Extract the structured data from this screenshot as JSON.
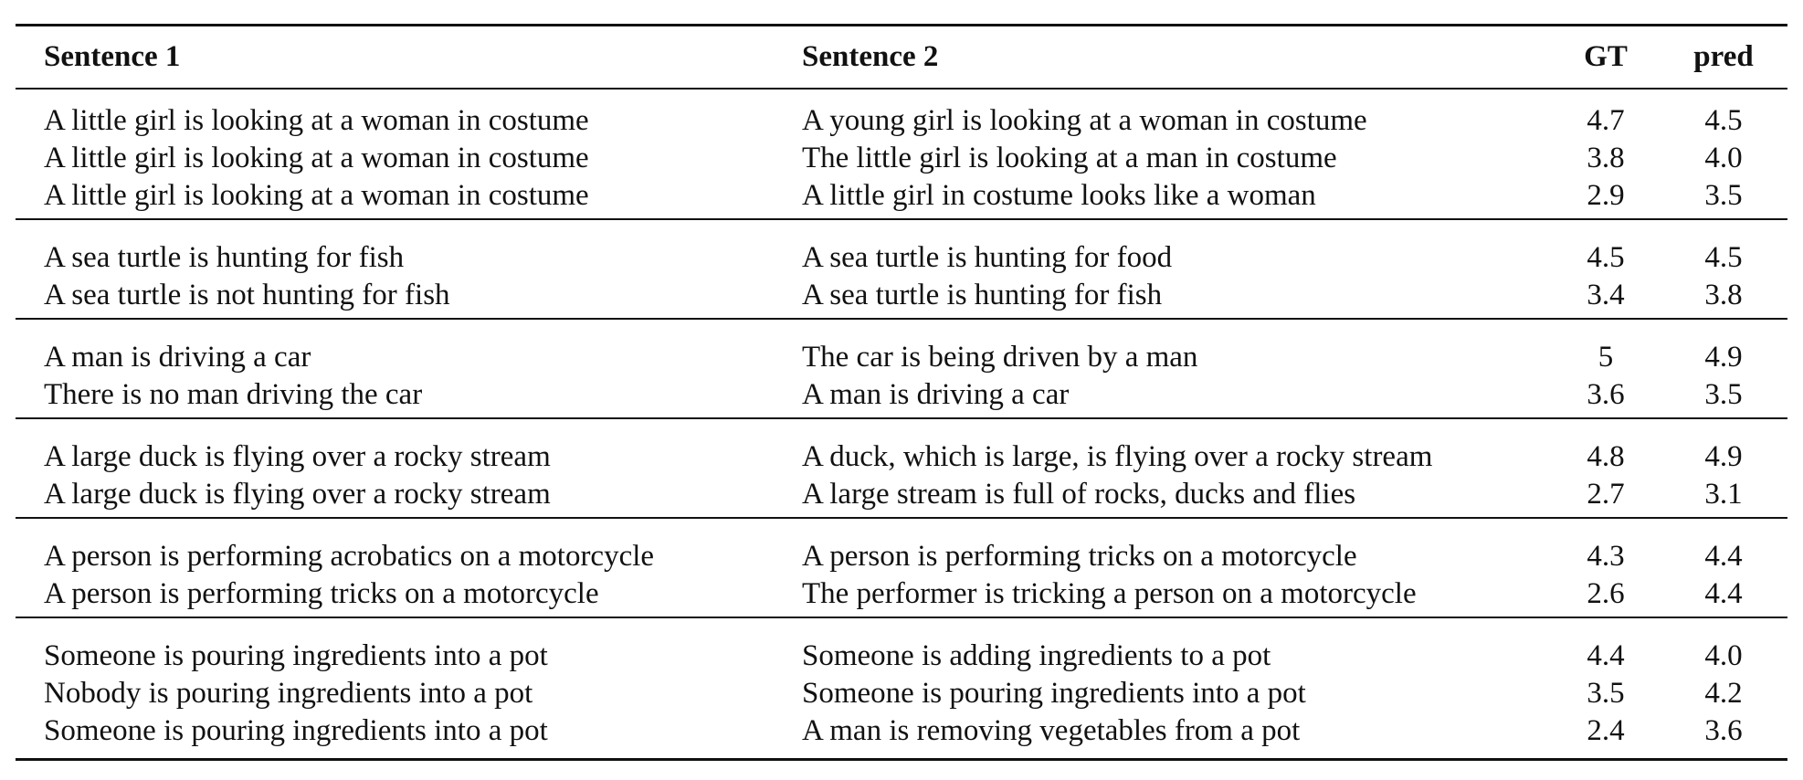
{
  "table": {
    "headers": {
      "sentence1": "Sentence 1",
      "sentence2": "Sentence 2",
      "gt": "GT",
      "pred": "pred"
    },
    "groups": [
      {
        "rows": [
          {
            "s1": "A little girl is looking at a woman in costume",
            "s2": "A young girl is looking at a woman in costume",
            "gt": "4.7",
            "pred": "4.5"
          },
          {
            "s1": "A little girl is looking at a woman in costume",
            "s2": "The little girl is looking at a man in costume",
            "gt": "3.8",
            "pred": "4.0"
          },
          {
            "s1": "A little girl is looking at a woman in costume",
            "s2": "A little girl in costume looks like a woman",
            "gt": "2.9",
            "pred": "3.5"
          }
        ]
      },
      {
        "rows": [
          {
            "s1": "A sea turtle is hunting for fish",
            "s2": "A sea turtle is hunting for food",
            "gt": "4.5",
            "pred": "4.5"
          },
          {
            "s1": "A sea turtle is not hunting for fish",
            "s2": "A sea turtle is hunting for fish",
            "gt": "3.4",
            "pred": "3.8"
          }
        ]
      },
      {
        "rows": [
          {
            "s1": "A man is driving a car",
            "s2": "The car is being driven by a man",
            "gt": "5",
            "pred": "4.9"
          },
          {
            "s1": "There is no man driving the car",
            "s2": "A man is driving a car",
            "gt": "3.6",
            "pred": "3.5"
          }
        ]
      },
      {
        "rows": [
          {
            "s1": "A large duck is flying over a rocky stream",
            "s2": "A duck, which is large, is flying over a rocky stream",
            "gt": "4.8",
            "pred": "4.9"
          },
          {
            "s1": "A large duck is flying over a rocky stream",
            "s2": "A large stream is full of rocks, ducks and flies",
            "gt": "2.7",
            "pred": "3.1"
          }
        ]
      },
      {
        "rows": [
          {
            "s1": "A person is performing acrobatics on a motorcycle",
            "s2": "A person is performing tricks on a motorcycle",
            "gt": "4.3",
            "pred": "4.4"
          },
          {
            "s1": "A person is performing tricks on a motorcycle",
            "s2": "The performer is tricking a person on a motorcycle",
            "gt": "2.6",
            "pred": "4.4"
          }
        ]
      },
      {
        "rows": [
          {
            "s1": "Someone is pouring ingredients into a pot",
            "s2": "Someone is adding ingredients to a pot",
            "gt": "4.4",
            "pred": "4.0"
          },
          {
            "s1": "Nobody is pouring ingredients into a pot",
            "s2": "Someone is pouring ingredients into a pot",
            "gt": "3.5",
            "pred": "4.2"
          },
          {
            "s1": "Someone is pouring ingredients into a pot",
            "s2": "A man is removing vegetables from a pot",
            "gt": "2.4",
            "pred": "3.6"
          }
        ]
      }
    ]
  }
}
